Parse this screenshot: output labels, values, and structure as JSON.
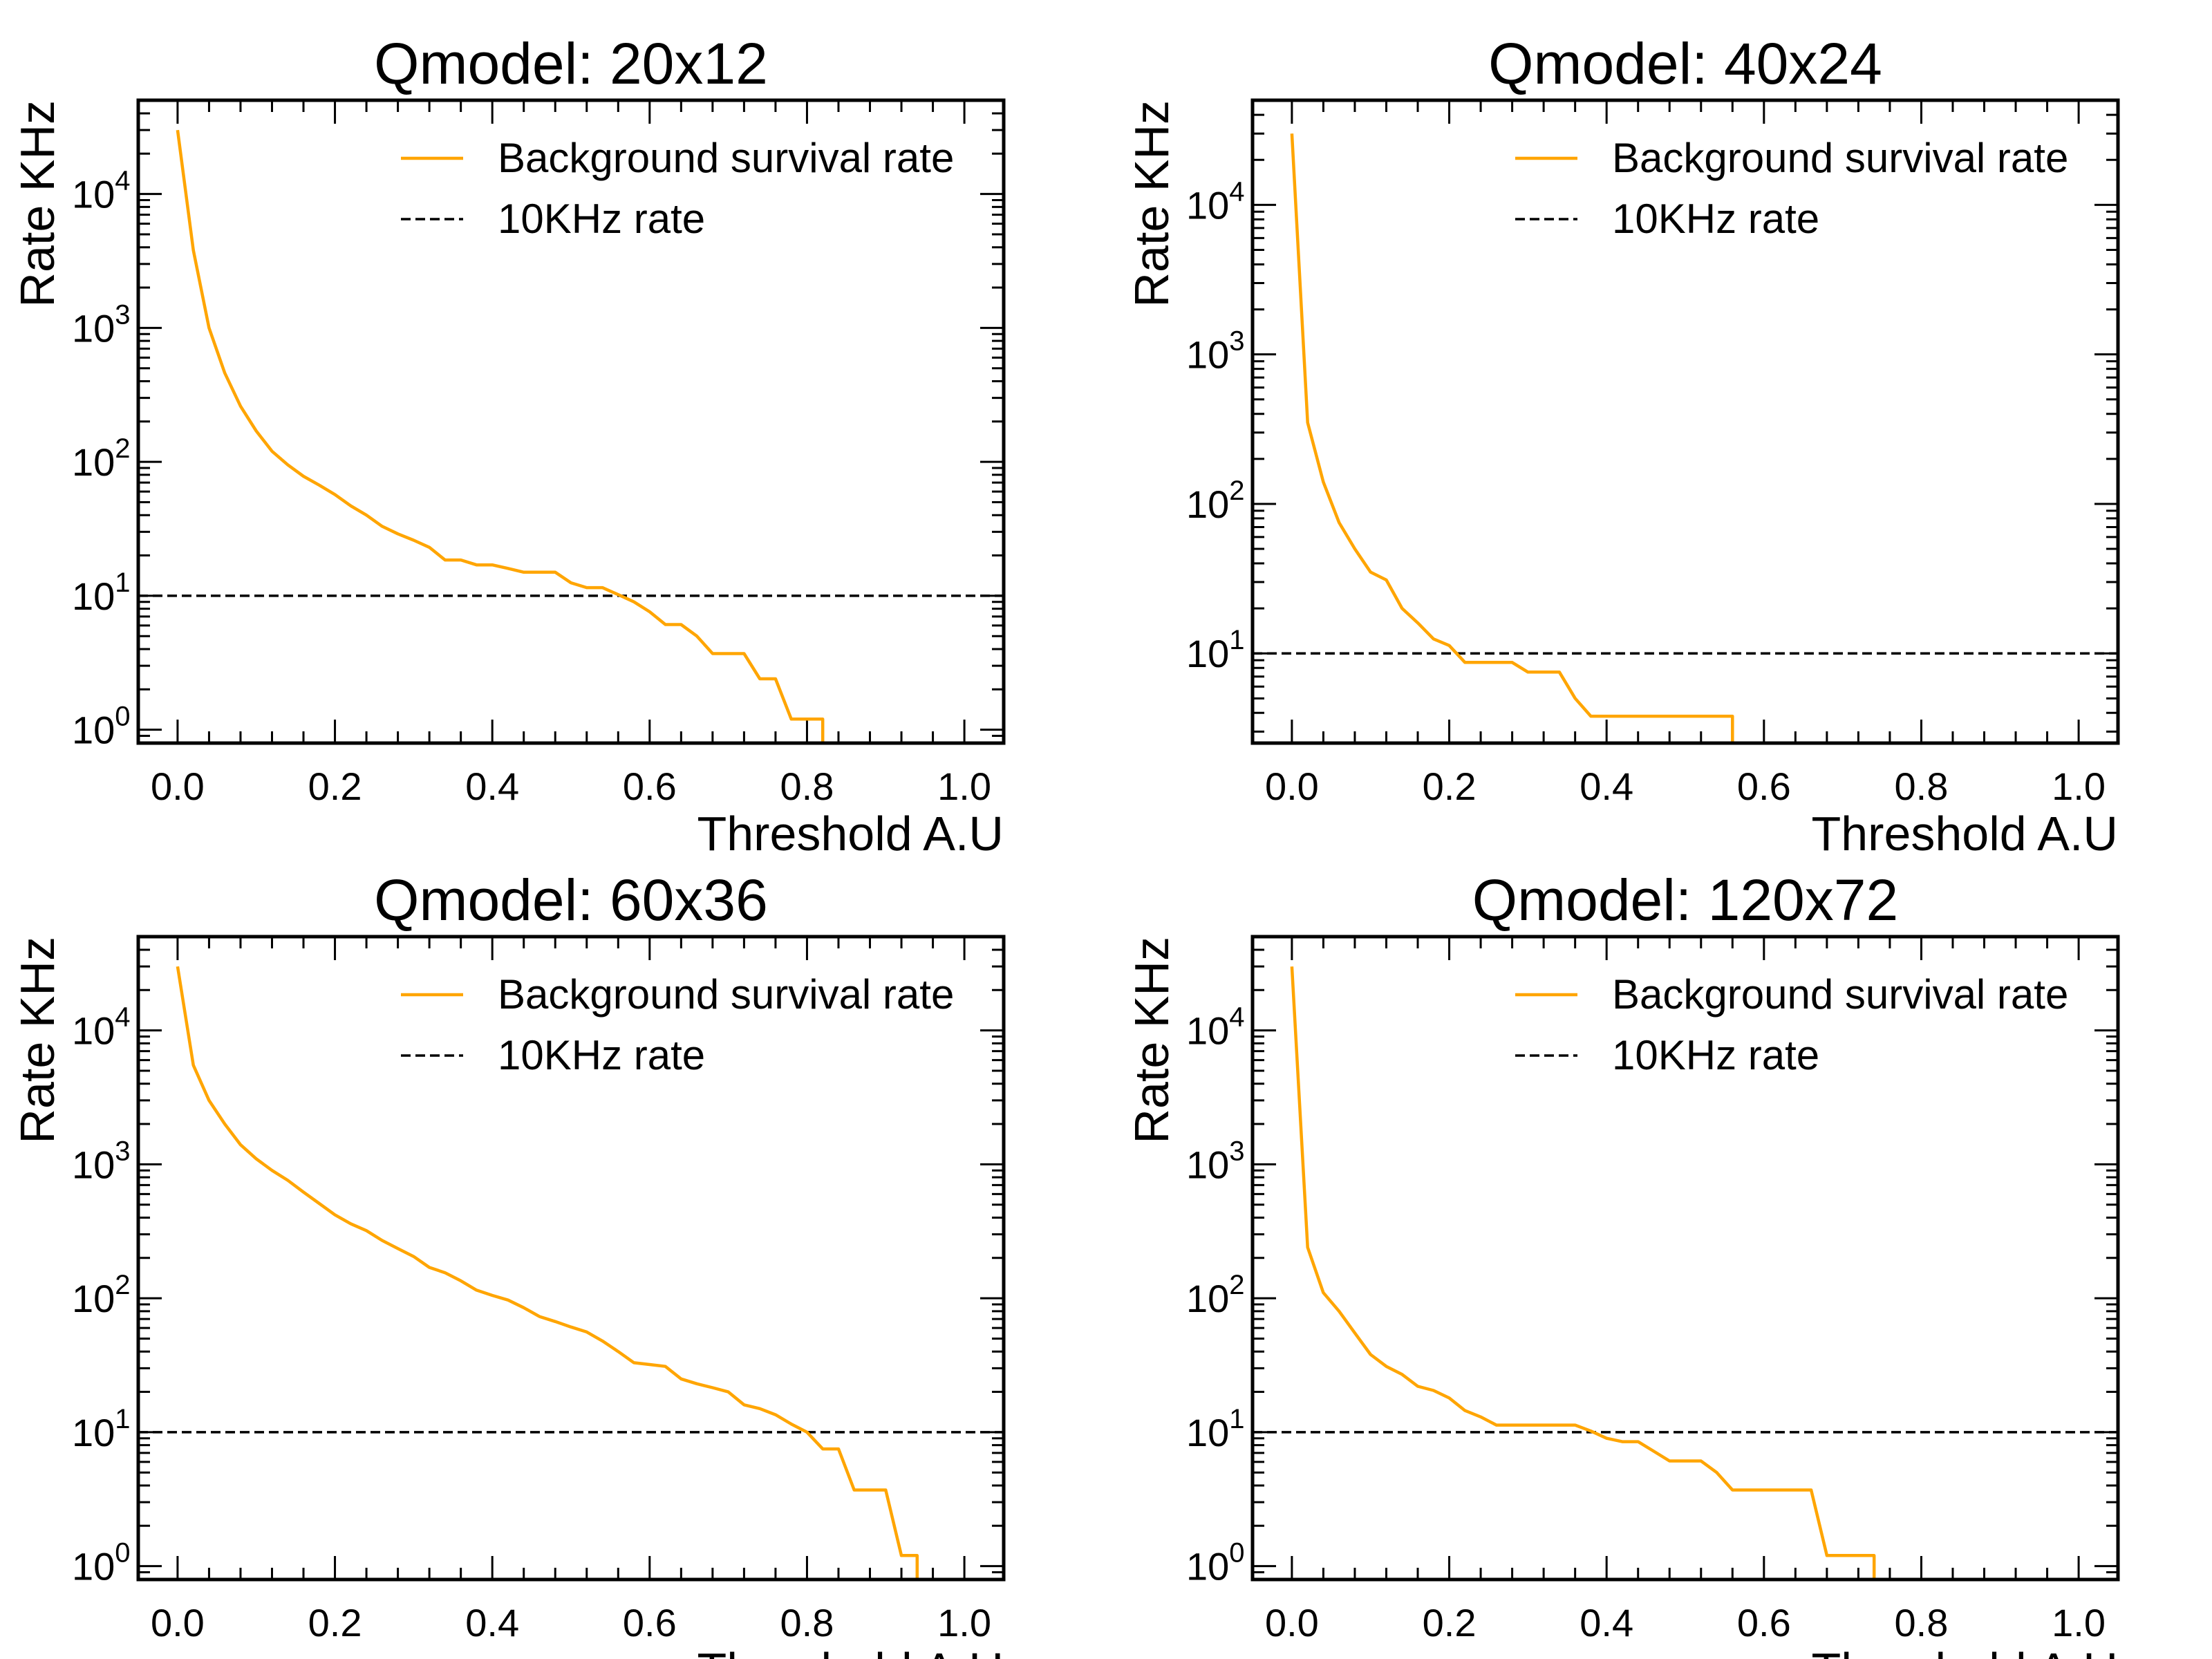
{
  "chart_data": [
    {
      "type": "line",
      "title": "Qmodel: 20x12",
      "xlabel": "Threshold A.U",
      "ylabel": "Rate KHz",
      "xlim": [
        -0.05,
        1.05
      ],
      "ylim_log10": [
        -0.1,
        4.7
      ],
      "yscale": "log",
      "xticks": [
        "0.0",
        "0.2",
        "0.4",
        "0.6",
        "0.8",
        "1.0"
      ],
      "yticks": [
        {
          "base": "10",
          "exp": "0"
        },
        {
          "base": "10",
          "exp": "1"
        },
        {
          "base": "10",
          "exp": "2"
        },
        {
          "base": "10",
          "exp": "3"
        },
        {
          "base": "10",
          "exp": "4"
        }
      ],
      "legend_position": "top-right",
      "legend": [
        "Background survival rate",
        "10KHz rate"
      ],
      "threshold_line": 10,
      "series": [
        {
          "name": "Background survival rate",
          "color": "#ffa500",
          "x": [
            0.0,
            0.02,
            0.04,
            0.06,
            0.08,
            0.1,
            0.12,
            0.14,
            0.16,
            0.18,
            0.2,
            0.22,
            0.24,
            0.26,
            0.28,
            0.3,
            0.32,
            0.34,
            0.36,
            0.38,
            0.4,
            0.42,
            0.44,
            0.46,
            0.48,
            0.5,
            0.52,
            0.54,
            0.56,
            0.58,
            0.6,
            0.62,
            0.64,
            0.66,
            0.68,
            0.7,
            0.72,
            0.74,
            0.76,
            0.78,
            0.8,
            0.82
          ],
          "y": [
            30000,
            3800,
            1000,
            460,
            260,
            170,
            120,
            95,
            78,
            67,
            57,
            47,
            40,
            33,
            29,
            26,
            23,
            18.5,
            18.5,
            17,
            17,
            16,
            15,
            15,
            15,
            12.5,
            11.5,
            11.5,
            10.2,
            9,
            7.6,
            6.1,
            6.1,
            5,
            3.7,
            3.7,
            3.7,
            2.4,
            2.4,
            1.2,
            1.2,
            1.2
          ]
        }
      ]
    },
    {
      "type": "line",
      "title": "Qmodel: 40x24",
      "xlabel": "Threshold A.U",
      "ylabel": "Rate KHz",
      "xlim": [
        -0.05,
        1.05
      ],
      "ylim_log10": [
        0.4,
        4.7
      ],
      "yscale": "log",
      "xticks": [
        "0.0",
        "0.2",
        "0.4",
        "0.6",
        "0.8",
        "1.0"
      ],
      "yticks": [
        {
          "base": "10",
          "exp": "1"
        },
        {
          "base": "10",
          "exp": "2"
        },
        {
          "base": "10",
          "exp": "3"
        },
        {
          "base": "10",
          "exp": "4"
        }
      ],
      "legend_position": "top-right",
      "legend": [
        "Background survival rate",
        "10KHz rate"
      ],
      "threshold_line": 10,
      "series": [
        {
          "name": "Background survival rate",
          "color": "#ffa500",
          "x": [
            0.0,
            0.02,
            0.04,
            0.06,
            0.08,
            0.1,
            0.12,
            0.14,
            0.16,
            0.18,
            0.2,
            0.22,
            0.24,
            0.26,
            0.28,
            0.3,
            0.32,
            0.34,
            0.36,
            0.38,
            0.4,
            0.42,
            0.44,
            0.46,
            0.48,
            0.5,
            0.52,
            0.54,
            0.56
          ],
          "y": [
            30000,
            350,
            140,
            75,
            50,
            35,
            31,
            20,
            16,
            12.5,
            11.3,
            8.7,
            8.7,
            8.7,
            8.7,
            7.5,
            7.5,
            7.5,
            5,
            3.8,
            3.8,
            3.8,
            3.8,
            3.8,
            3.8,
            3.8,
            3.8,
            3.8,
            3.8
          ]
        }
      ]
    },
    {
      "type": "line",
      "title": "Qmodel: 60x36",
      "xlabel": "Threshold A.U",
      "ylabel": "Rate KHz",
      "xlim": [
        -0.05,
        1.05
      ],
      "ylim_log10": [
        -0.1,
        4.7
      ],
      "yscale": "log",
      "xticks": [
        "0.0",
        "0.2",
        "0.4",
        "0.6",
        "0.8",
        "1.0"
      ],
      "yticks": [
        {
          "base": "10",
          "exp": "0"
        },
        {
          "base": "10",
          "exp": "1"
        },
        {
          "base": "10",
          "exp": "2"
        },
        {
          "base": "10",
          "exp": "3"
        },
        {
          "base": "10",
          "exp": "4"
        }
      ],
      "legend_position": "top-right",
      "legend": [
        "Background survival rate",
        "10KHz rate"
      ],
      "threshold_line": 10,
      "series": [
        {
          "name": "Background survival rate",
          "color": "#ffa500",
          "x": [
            0.0,
            0.02,
            0.04,
            0.06,
            0.08,
            0.1,
            0.12,
            0.14,
            0.16,
            0.18,
            0.2,
            0.22,
            0.24,
            0.26,
            0.28,
            0.3,
            0.32,
            0.34,
            0.36,
            0.38,
            0.4,
            0.42,
            0.44,
            0.46,
            0.48,
            0.5,
            0.52,
            0.54,
            0.56,
            0.58,
            0.6,
            0.62,
            0.64,
            0.66,
            0.68,
            0.7,
            0.72,
            0.74,
            0.76,
            0.78,
            0.8,
            0.82,
            0.84,
            0.86,
            0.88,
            0.9,
            0.92,
            0.94
          ],
          "y": [
            30000,
            5500,
            3000,
            2000,
            1400,
            1100,
            900,
            760,
            620,
            510,
            420,
            360,
            320,
            270,
            235,
            205,
            170,
            155,
            135,
            115,
            105,
            97,
            85,
            73,
            67,
            61,
            56,
            48,
            40,
            33,
            32,
            31,
            25,
            23,
            21.5,
            20,
            16,
            15,
            13.5,
            11.5,
            10,
            7.5,
            7.5,
            3.7,
            3.7,
            3.7,
            1.2,
            1.2
          ]
        }
      ]
    },
    {
      "type": "line",
      "title": "Qmodel: 120x72",
      "xlabel": "Threshold A.U",
      "ylabel": "Rate KHz",
      "xlim": [
        -0.05,
        1.05
      ],
      "ylim_log10": [
        -0.1,
        4.7
      ],
      "yscale": "log",
      "xticks": [
        "0.0",
        "0.2",
        "0.4",
        "0.6",
        "0.8",
        "1.0"
      ],
      "yticks": [
        {
          "base": "10",
          "exp": "0"
        },
        {
          "base": "10",
          "exp": "1"
        },
        {
          "base": "10",
          "exp": "2"
        },
        {
          "base": "10",
          "exp": "3"
        },
        {
          "base": "10",
          "exp": "4"
        }
      ],
      "legend_position": "top-right",
      "legend": [
        "Background survival rate",
        "10KHz rate"
      ],
      "threshold_line": 10,
      "series": [
        {
          "name": "Background survival rate",
          "color": "#ffa500",
          "x": [
            0.0,
            0.02,
            0.04,
            0.06,
            0.08,
            0.1,
            0.12,
            0.14,
            0.16,
            0.18,
            0.2,
            0.22,
            0.24,
            0.26,
            0.28,
            0.3,
            0.32,
            0.34,
            0.36,
            0.38,
            0.4,
            0.42,
            0.44,
            0.46,
            0.48,
            0.5,
            0.52,
            0.54,
            0.56,
            0.58,
            0.6,
            0.62,
            0.64,
            0.66,
            0.68,
            0.7,
            0.72,
            0.74
          ],
          "y": [
            30000,
            240,
            110,
            80,
            55,
            38,
            31,
            27,
            22,
            20.5,
            18,
            14.5,
            13,
            11.3,
            11.3,
            11.3,
            11.3,
            11.3,
            11.3,
            10.2,
            9,
            8.5,
            8.5,
            7.2,
            6.1,
            6.1,
            6.1,
            5,
            3.7,
            3.7,
            3.7,
            3.7,
            3.7,
            3.7,
            1.2,
            1.2,
            1.2,
            1.2
          ]
        }
      ]
    }
  ]
}
